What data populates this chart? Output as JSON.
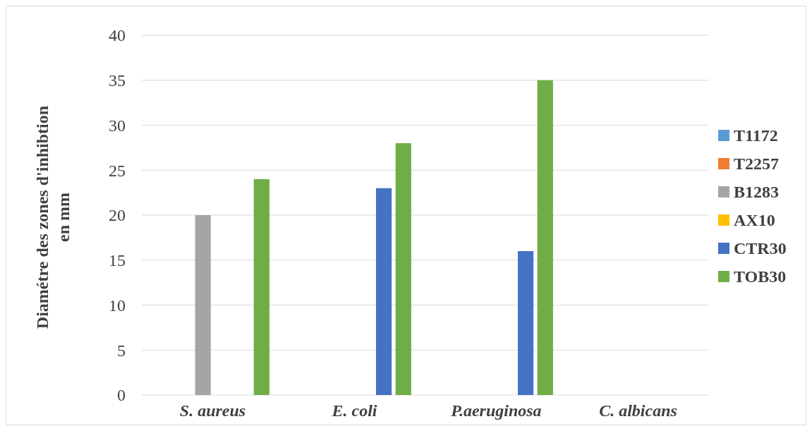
{
  "chart_data": {
    "type": "bar",
    "ylabel": "Diamétre des zones d'inhibtion en mm",
    "categories": [
      "S. aureus",
      "E. coli",
      "P.aeruginosa",
      "C. albicans"
    ],
    "series": [
      {
        "name": "T1172",
        "color": "#5b9bd5",
        "values": [
          0,
          0,
          0,
          0
        ]
      },
      {
        "name": "T2257",
        "color": "#ed7d31",
        "values": [
          0,
          0,
          0,
          0
        ]
      },
      {
        "name": "B1283",
        "color": "#a5a5a5",
        "values": [
          20,
          0,
          0,
          0
        ]
      },
      {
        "name": "AX10",
        "color": "#ffc000",
        "values": [
          0,
          0,
          0,
          0
        ]
      },
      {
        "name": "CTR30",
        "color": "#4472c4",
        "values": [
          0,
          23,
          16,
          0
        ]
      },
      {
        "name": "TOB30",
        "color": "#70ad47",
        "values": [
          24,
          28,
          35,
          0
        ]
      }
    ],
    "ylim": [
      0,
      40
    ],
    "yticks": [
      0,
      5,
      10,
      15,
      20,
      25,
      30,
      35,
      40
    ],
    "grid": "y",
    "legend": "right"
  }
}
